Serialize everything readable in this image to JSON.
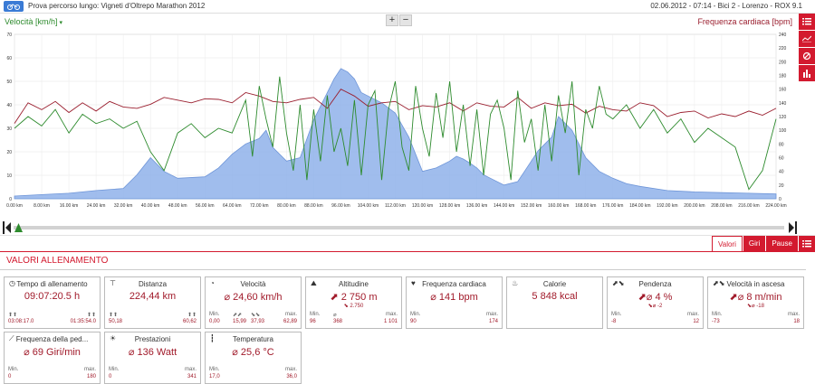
{
  "header": {
    "title": "Prova percorso lungo: Vigneti d'Oltrepo Marathon 2012",
    "meta": "02.06.2012  -  07:14  -  Bici 2  -  Lorenzo  -  ROX 9.1"
  },
  "chart_header": {
    "left_axis_title": "Velocità [km/h]",
    "left_caret": "▾",
    "right_axis_title": "Frequenza cardiaca [bpm]",
    "zoom_in": "+",
    "zoom_out": "−"
  },
  "colors": {
    "accent": "#d31a2f",
    "speed": "#2e8b2e",
    "heart_rate": "#9a1e2e",
    "altitude_fill": "#8fb2ea",
    "altitude_stroke": "#6e95d8"
  },
  "icons": {
    "side_tools": [
      "list-icon",
      "line-chart-icon",
      "no-symbol-icon",
      "bar-chart-icon"
    ],
    "tabs_menu": "list-icon"
  },
  "chart_data": {
    "type": "line",
    "x_axis": {
      "min": 0,
      "max": 224,
      "ticks": [
        "0.00 km",
        "8.00 km",
        "16.00 km",
        "24.00 km",
        "32.00 km",
        "40.00 km",
        "48.00 km",
        "56.00 km",
        "64.00 km",
        "72.00 km",
        "80.00 km",
        "88.00 km",
        "96.00 km",
        "104.00 km",
        "112.00 km",
        "120.00 km",
        "128.00 km",
        "136.00 km",
        "144.00 km",
        "152.00 km",
        "160.00 km",
        "168.00 km",
        "176.00 km",
        "184.00 km",
        "192.00 km",
        "200.00 km",
        "208.00 km",
        "216.00 km",
        "224.00 km"
      ]
    },
    "left_axis": {
      "min": 0,
      "max": 70,
      "ticks": [
        "0",
        "10",
        "20",
        "30",
        "40",
        "50",
        "60",
        "70"
      ]
    },
    "right_axis": {
      "min": 0,
      "max": 240,
      "ticks": [
        "0",
        "20",
        "40",
        "60",
        "80",
        "100",
        "120",
        "140",
        "160",
        "180",
        "200",
        "220",
        "240"
      ]
    },
    "series": [
      {
        "name": "Altitudine",
        "axis": "right",
        "x": [
          0,
          8,
          16,
          24,
          32,
          36,
          40,
          44,
          48,
          56,
          60,
          64,
          68,
          72,
          74,
          76,
          80,
          84,
          88,
          92,
          94,
          96,
          98,
          100,
          102,
          104,
          108,
          112,
          116,
          120,
          124,
          128,
          130,
          132,
          134,
          136,
          138,
          140,
          144,
          148,
          150,
          152,
          154,
          156,
          158,
          160,
          162,
          164,
          168,
          172,
          176,
          180,
          184,
          192,
          200,
          208,
          216,
          224
        ],
        "y": [
          4,
          6,
          8,
          12,
          15,
          35,
          60,
          40,
          30,
          32,
          45,
          65,
          80,
          88,
          100,
          75,
          55,
          60,
          115,
          155,
          175,
          190,
          185,
          175,
          155,
          150,
          140,
          125,
          90,
          40,
          45,
          55,
          62,
          58,
          52,
          45,
          35,
          30,
          20,
          25,
          40,
          55,
          70,
          80,
          90,
          120,
          110,
          100,
          60,
          40,
          30,
          22,
          18,
          12,
          10,
          9,
          8,
          7
        ]
      },
      {
        "name": "Frequenza cardiaca",
        "axis": "right",
        "x": [
          0,
          4,
          8,
          12,
          16,
          20,
          24,
          28,
          32,
          36,
          40,
          44,
          48,
          52,
          56,
          60,
          64,
          68,
          72,
          76,
          80,
          84,
          88,
          92,
          96,
          100,
          104,
          108,
          112,
          116,
          120,
          124,
          128,
          132,
          136,
          140,
          144,
          148,
          152,
          156,
          160,
          164,
          168,
          172,
          176,
          180,
          184,
          188,
          192,
          196,
          200,
          204,
          208,
          212,
          216,
          220,
          224
        ],
        "y": [
          110,
          140,
          130,
          142,
          126,
          140,
          128,
          142,
          134,
          132,
          138,
          148,
          144,
          140,
          146,
          145,
          140,
          155,
          150,
          142,
          140,
          145,
          148,
          132,
          160,
          150,
          135,
          140,
          142,
          130,
          136,
          134,
          140,
          128,
          140,
          135,
          134,
          148,
          132,
          140,
          136,
          138,
          125,
          135,
          130,
          128,
          140,
          136,
          120,
          126,
          128,
          118,
          124,
          120,
          128,
          122,
          132
        ]
      },
      {
        "name": "Velocità",
        "axis": "left",
        "x": [
          0,
          4,
          8,
          12,
          16,
          20,
          24,
          28,
          32,
          36,
          40,
          44,
          48,
          52,
          56,
          60,
          64,
          68,
          70,
          72,
          74,
          76,
          78,
          80,
          82,
          84,
          86,
          88,
          90,
          92,
          94,
          96,
          98,
          100,
          102,
          104,
          106,
          108,
          110,
          112,
          114,
          116,
          118,
          120,
          122,
          124,
          126,
          128,
          130,
          132,
          134,
          136,
          138,
          140,
          142,
          144,
          146,
          148,
          150,
          152,
          154,
          156,
          158,
          160,
          162,
          164,
          166,
          168,
          170,
          172,
          174,
          176,
          180,
          184,
          188,
          192,
          196,
          200,
          204,
          208,
          212,
          216,
          220,
          224
        ],
        "y": [
          30,
          35,
          31,
          38,
          28,
          36,
          32,
          34,
          30,
          33,
          20,
          12,
          28,
          32,
          26,
          30,
          28,
          42,
          18,
          48,
          34,
          22,
          52,
          28,
          12,
          40,
          8,
          38,
          16,
          44,
          20,
          30,
          14,
          42,
          10,
          40,
          46,
          8,
          38,
          50,
          22,
          12,
          48,
          30,
          18,
          45,
          26,
          50,
          20,
          40,
          14,
          38,
          10,
          36,
          42,
          30,
          8,
          46,
          24,
          34,
          12,
          40,
          16,
          44,
          28,
          50,
          10,
          38,
          30,
          48,
          36,
          34,
          40,
          30,
          38,
          28,
          34,
          24,
          30,
          26,
          22,
          4,
          12,
          34
        ]
      }
    ]
  },
  "tabs": [
    {
      "label": "Valori"
    },
    {
      "label": "Giri"
    },
    {
      "label": "Pause"
    }
  ],
  "panel": {
    "title": "VALORI ALLENAMENTO"
  },
  "cards": [
    {
      "title": "Tempo di allenamento",
      "value": "09:07:20.5 h",
      "foot": {
        "l_label": "⬆⬆",
        "l_val": "03:08:17.0",
        "r_label": "⬆⬆",
        "r_val": "01:35:54.0"
      }
    },
    {
      "title": "Distanza",
      "value": "224,44 km",
      "foot": {
        "l_label": "⬆⬆",
        "l_val": "50,18",
        "r_label": "⬆⬆",
        "r_val": "60,62"
      }
    },
    {
      "title": "Velocità",
      "value": "⌀ 24,60 km/h",
      "foot": {
        "l_label": "Min.",
        "l_val": "0,00",
        "m1_label": "⬈⬈",
        "m1_val": "15,99",
        "m2_label": "⬊⬊",
        "m2_val": "37,93",
        "r_label": "max.",
        "r_val": "62,89"
      }
    },
    {
      "title": "Altitudine",
      "value": "⬈ 2 750 m",
      "sub": "⬊ 2.750",
      "foot": {
        "l_label": "Min.",
        "l_val": "96",
        "m1_label": "⌀",
        "m1_val": "368",
        "r_label": "max.",
        "r_val": "1 101"
      }
    },
    {
      "title": "Frequenza cardiaca",
      "value": "⌀ 141 bpm",
      "foot": {
        "l_label": "Min.",
        "l_val": "90",
        "r_label": "max.",
        "r_val": "174"
      }
    },
    {
      "title": "Calorie",
      "value": "5 848 kcal",
      "foot": {}
    },
    {
      "title": "Pendenza",
      "value": "⬈⌀ 4 %",
      "sub": "⬊⌀ -2",
      "foot": {
        "l_label": "Min.",
        "l_val": "-8",
        "r_label": "max.",
        "r_val": "12"
      }
    },
    {
      "title": "Velocità in ascesa",
      "value": "⬈⌀ 8 m/min",
      "sub": "⬊⌀ -18",
      "foot": {
        "l_label": "Min.",
        "l_val": "-73",
        "r_label": "max.",
        "r_val": "18"
      }
    },
    {
      "title": "Frequenza della ped...",
      "value": "⌀ 69 Giri/min",
      "foot": {
        "l_label": "Min.",
        "l_val": "0",
        "r_label": "max.",
        "r_val": "180"
      }
    },
    {
      "title": "Prestazioni",
      "value": "⌀ 136 Watt",
      "foot": {
        "l_label": "Min.",
        "l_val": "0",
        "r_label": "max.",
        "r_val": "341"
      }
    },
    {
      "title": "Temperatura",
      "value": "⌀ 25,6 °C",
      "foot": {
        "l_label": "Min.",
        "l_val": "17,0",
        "r_label": "max.",
        "r_val": "36,0"
      }
    }
  ]
}
